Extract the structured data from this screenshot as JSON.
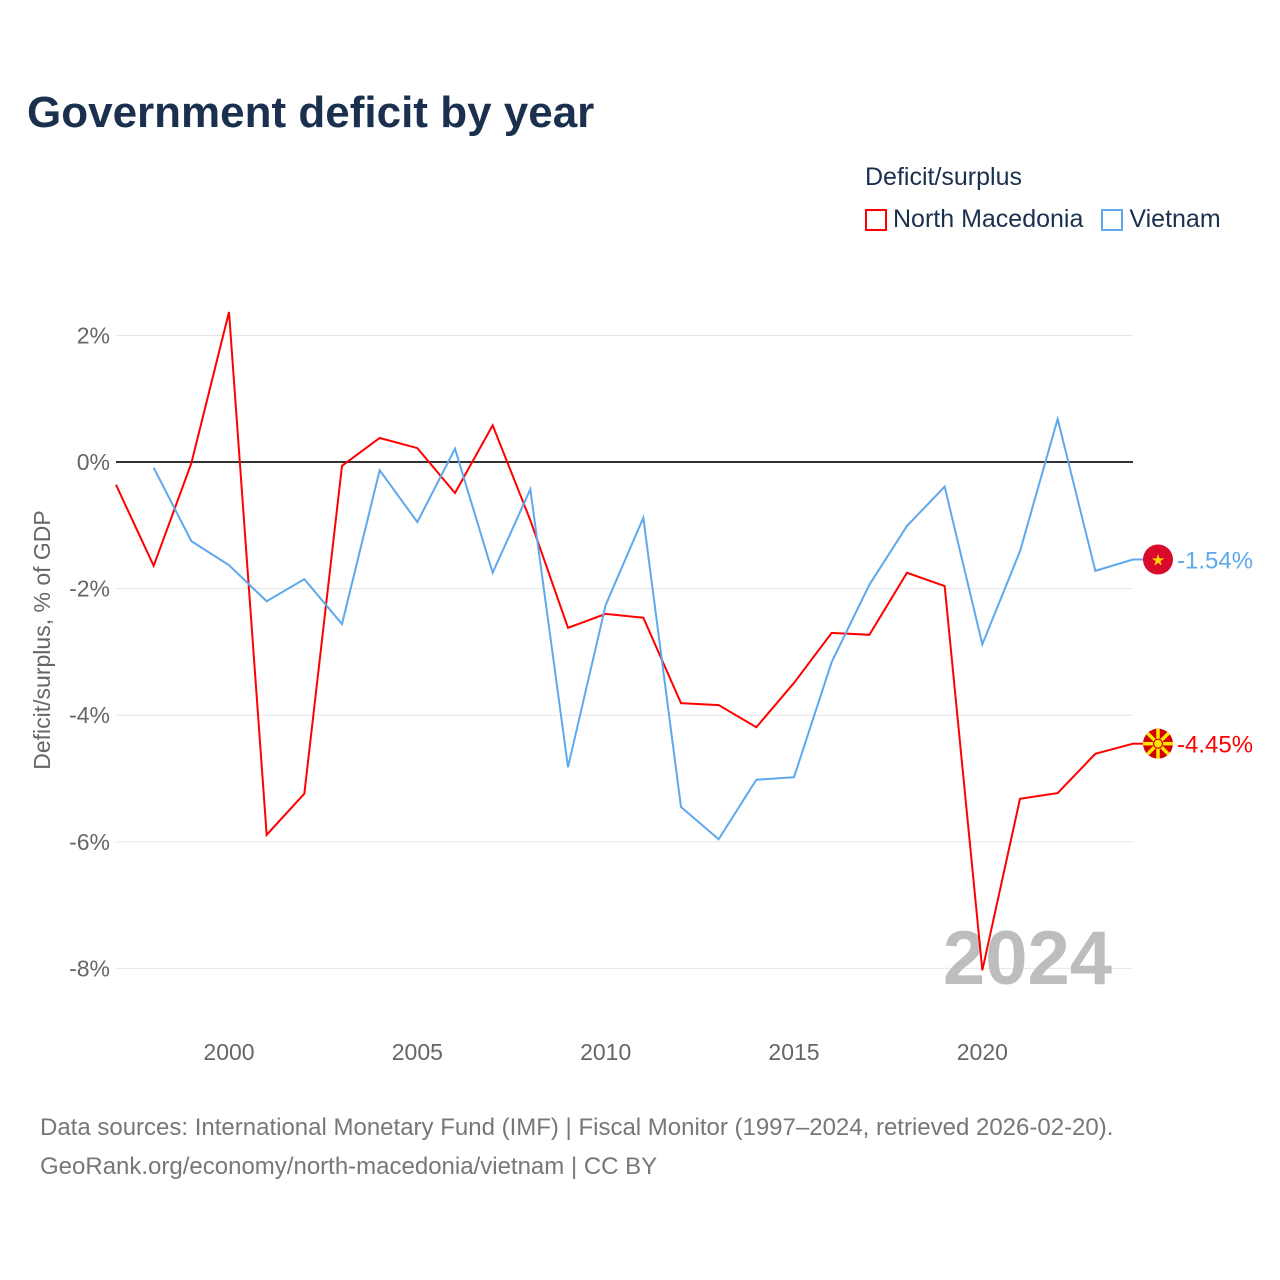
{
  "chart_data": {
    "type": "line",
    "title": "Government deficit by year",
    "ylabel": "Deficit/surplus, % of GDP",
    "xlabel": "",
    "xlim": [
      1997,
      2024
    ],
    "ylim": [
      -9,
      2.6
    ],
    "yticks": [
      2,
      0,
      -2,
      -4,
      -6,
      -8
    ],
    "ytick_labels": [
      "2%",
      "0%",
      "-2%",
      "-4%",
      "-6%",
      "-8%"
    ],
    "xticks": [
      2000,
      2005,
      2010,
      2015,
      2020
    ],
    "xtick_labels": [
      "2000",
      "2005",
      "2010",
      "2015",
      "2020"
    ],
    "legend_title": "Deficit/surplus",
    "legend_position": "top-right",
    "year_watermark": "2024",
    "series": [
      {
        "name": "North Macedonia",
        "color": "#ff0000",
        "end_label": "-4.45%",
        "x": [
          1997,
          1998,
          1999,
          2000,
          2001,
          2002,
          2003,
          2004,
          2005,
          2006,
          2007,
          2008,
          2009,
          2010,
          2011,
          2012,
          2013,
          2014,
          2015,
          2016,
          2017,
          2018,
          2019,
          2020,
          2021,
          2022,
          2023,
          2024
        ],
        "values": [
          -0.36,
          -1.64,
          -0.02,
          2.37,
          -5.89,
          -5.24,
          -0.06,
          0.38,
          0.22,
          -0.49,
          0.58,
          -0.92,
          -2.62,
          -2.4,
          -2.46,
          -3.81,
          -3.84,
          -4.19,
          -3.49,
          -2.7,
          -2.73,
          -1.75,
          -1.96,
          -8.03,
          -5.32,
          -5.23,
          -4.61,
          -4.45
        ]
      },
      {
        "name": "Vietnam",
        "color": "#5ea8ee",
        "end_label": "-1.54%",
        "x": [
          1998,
          1999,
          2000,
          2001,
          2002,
          2003,
          2004,
          2005,
          2006,
          2007,
          2008,
          2009,
          2010,
          2011,
          2012,
          2013,
          2014,
          2015,
          2016,
          2017,
          2018,
          2019,
          2020,
          2021,
          2022,
          2023,
          2024
        ],
        "values": [
          -0.09,
          -1.25,
          -1.63,
          -2.2,
          -1.85,
          -2.56,
          -0.13,
          -0.95,
          0.21,
          -1.75,
          -0.43,
          -4.82,
          -2.26,
          -0.88,
          -5.45,
          -5.96,
          -5.02,
          -4.98,
          -3.16,
          -1.94,
          -1.01,
          -0.39,
          -2.88,
          -1.41,
          0.68,
          -1.72,
          -1.54
        ]
      }
    ]
  },
  "footer": {
    "line1": "Data sources: International Monetary Fund (IMF) | Fiscal Monitor (1997–2024, retrieved 2026-02-20).",
    "line2": "GeoRank.org/economy/north-macedonia/vietnam | CC BY"
  }
}
